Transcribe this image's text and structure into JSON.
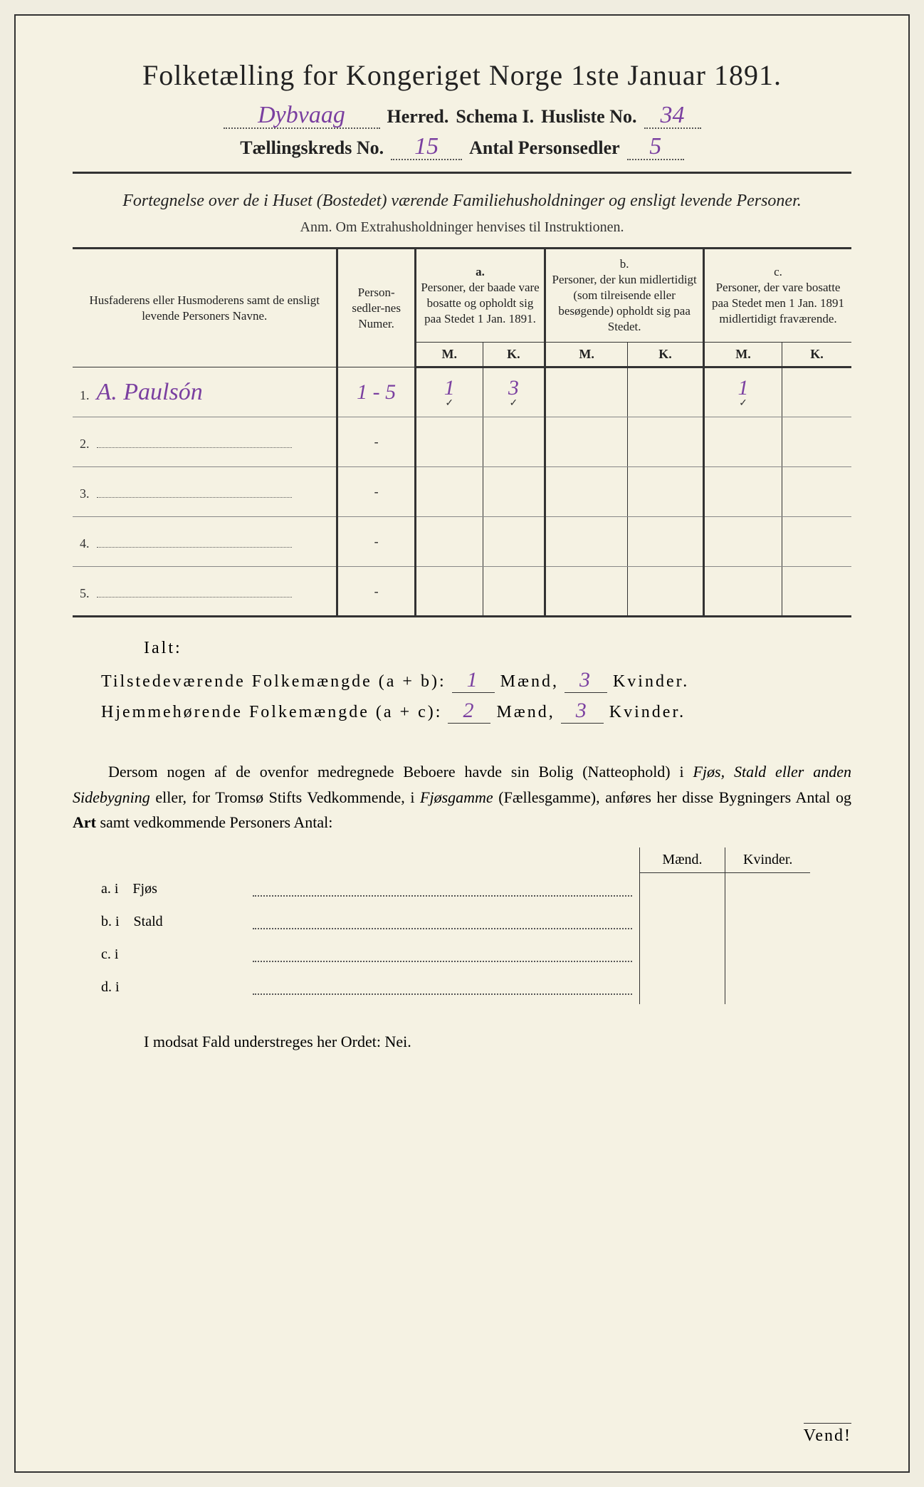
{
  "title": "Folketælling for Kongeriget Norge 1ste Januar 1891.",
  "header": {
    "herred_value": "Dybvaag",
    "herred_label": "Herred.",
    "schema_label": "Schema I.",
    "husliste_label": "Husliste No.",
    "husliste_value": "34",
    "kreds_label": "Tællingskreds No.",
    "kreds_value": "15",
    "antal_label": "Antal Personsedler",
    "antal_value": "5"
  },
  "subtitle": "Fortegnelse over de i Huset (Bostedet) værende Familiehusholdninger og ensligt levende Personer.",
  "anm": "Anm. Om Extrahusholdninger henvises til Instruktionen.",
  "columns": {
    "name": "Husfaderens eller Husmoderens samt de ensligt levende Personers Navne.",
    "numer": "Person-sedler-nes Numer.",
    "a_label": "a.",
    "a": "Personer, der baade vare bosatte og opholdt sig paa Stedet 1 Jan. 1891.",
    "b_label": "b.",
    "b": "Personer, der kun midlertidigt (som tilreisende eller besøgende) opholdt sig paa Stedet.",
    "c_label": "c.",
    "c": "Personer, der vare bosatte paa Stedet men 1 Jan. 1891 midlertidigt fraværende.",
    "m": "M.",
    "k": "K."
  },
  "rows": [
    {
      "n": "1.",
      "name": "A. Paulsón",
      "numer": "1 - 5",
      "aM": "1",
      "aK": "3",
      "bM": "",
      "bK": "",
      "cM": "1",
      "cK": ""
    },
    {
      "n": "2.",
      "name": "",
      "numer": "-",
      "aM": "",
      "aK": "",
      "bM": "",
      "bK": "",
      "cM": "",
      "cK": ""
    },
    {
      "n": "3.",
      "name": "",
      "numer": "-",
      "aM": "",
      "aK": "",
      "bM": "",
      "bK": "",
      "cM": "",
      "cK": ""
    },
    {
      "n": "4.",
      "name": "",
      "numer": "-",
      "aM": "",
      "aK": "",
      "bM": "",
      "bK": "",
      "cM": "",
      "cK": ""
    },
    {
      "n": "5.",
      "name": "",
      "numer": "-",
      "aM": "",
      "aK": "",
      "bM": "",
      "bK": "",
      "cM": "",
      "cK": ""
    }
  ],
  "ialt": "Ialt:",
  "sums": {
    "tilstede_label": "Tilstedeværende Folkemængde (a + b):",
    "tilstede_m": "1",
    "tilstede_k": "3",
    "hjemme_label": "Hjemmehørende Folkemængde (a + c):",
    "hjemme_m": "2",
    "hjemme_k": "3",
    "maend": "Mænd,",
    "kvinder": "Kvinder."
  },
  "para": {
    "p1a": "Dersom nogen af de ovenfor medregnede Beboere havde sin Bolig (Natteophold) i ",
    "p1b": "Fjøs, Stald eller anden Sidebygning",
    "p1c": " eller, for Tromsø Stifts Vedkommende, i ",
    "p1d": "Fjøsgamme",
    "p1e": " (Fællesgamme), anføres her disse Bygningers Antal og ",
    "p1f": "Art",
    "p1g": " samt vedkommende Personers Antal:"
  },
  "out": {
    "maend": "Mænd.",
    "kvinder": "Kvinder.",
    "rows": [
      {
        "lab": "a.  i",
        "name": "Fjøs"
      },
      {
        "lab": "b.  i",
        "name": "Stald"
      },
      {
        "lab": "c.  i",
        "name": ""
      },
      {
        "lab": "d.  i",
        "name": ""
      }
    ]
  },
  "nei": "I modsat Fald understreges her Ordet: Nei.",
  "vend": "Vend!",
  "colors": {
    "paper": "#f5f2e3",
    "ink": "#222222",
    "handwriting": "#7a3fa0",
    "border": "#333333"
  }
}
